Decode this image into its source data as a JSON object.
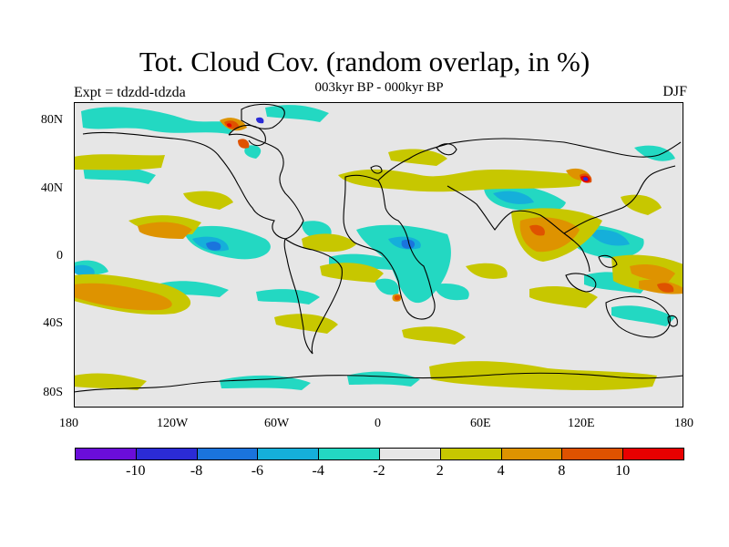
{
  "title": "Tot. Cloud Cov. (random overlap, in %)",
  "subtitle": "003kyr BP - 000kyr BP",
  "left_label": "Expt = tdzdd-tdzda",
  "right_label": "DJF",
  "map": {
    "type": "global cloud cover difference map",
    "projection": "cylindrical equidistant",
    "lon_range": [
      -180,
      180
    ],
    "lat_range": [
      -90,
      90
    ],
    "background_color": "#e6e6e6",
    "coastline_color": "#000000",
    "lon_ticks": [
      "180",
      "120W",
      "60W",
      "0",
      "60E",
      "120E",
      "180"
    ],
    "lat_ticks": [
      "80N",
      "40N",
      "0",
      "40S",
      "80S"
    ]
  },
  "colorbar": {
    "colors": [
      "#6a0dd9",
      "#2b2bd6",
      "#1a74dd",
      "#15afda",
      "#23d8c2",
      "#e6e6e6",
      "#c7c700",
      "#de9300",
      "#df5200",
      "#e80000"
    ],
    "labels": [
      "-10",
      "-8",
      "-6",
      "-4",
      "-2",
      "2",
      "4",
      "8",
      "10"
    ]
  }
}
